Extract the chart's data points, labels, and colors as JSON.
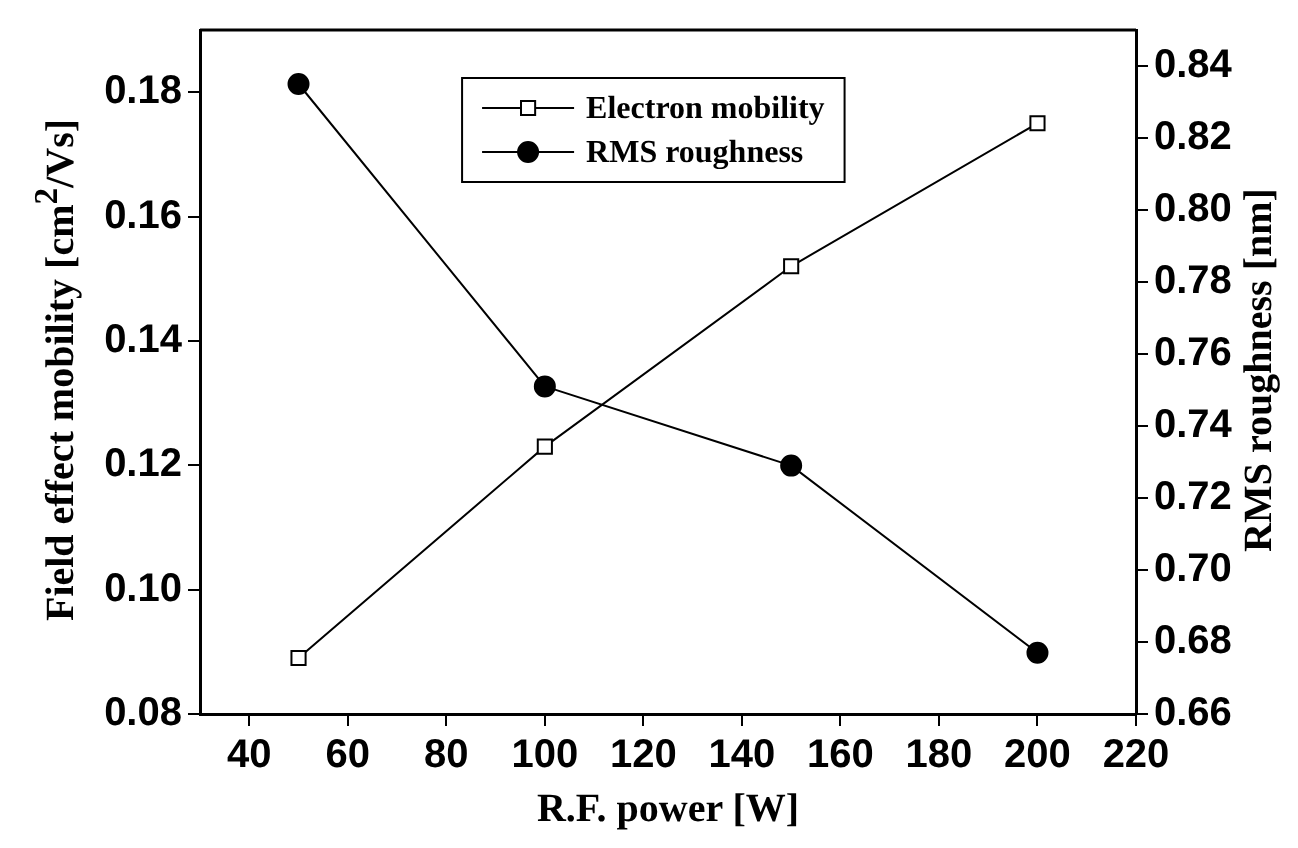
{
  "chart_data": {
    "type": "line",
    "xlabel": "R.F. power [W]",
    "ylabel": "Field effect mobility [cm$^{2}$/Vs]",
    "y2label": "RMS roughness [nm]",
    "x": [
      50,
      100,
      150,
      200
    ],
    "series": [
      {
        "name": "Electron mobility",
        "color": "#000000",
        "marker": "square",
        "values": [
          0.089,
          0.123,
          0.152,
          0.175
        ]
      },
      {
        "name": "RMS roughness",
        "color": "#000000",
        "marker": "circle",
        "axis": "y2",
        "values": [
          0.835,
          0.751,
          0.729,
          0.677
        ]
      }
    ],
    "xlim": [
      30,
      220
    ],
    "xticks": [
      40,
      60,
      80,
      100,
      120,
      140,
      160,
      180,
      200,
      220
    ],
    "ylim": [
      0.08,
      0.19
    ],
    "yticks": [
      0.08,
      {
        "value": 0.1,
        "label": "0.10"
      },
      0.12,
      0.14,
      0.16,
      0.18
    ],
    "y2lim": [
      0.66,
      0.85
    ],
    "y2ticks": [
      0.66,
      0.68,
      {
        "value": 0.7,
        "label": "0.70"
      },
      0.72,
      0.74,
      0.76,
      0.78,
      {
        "value": 0.8,
        "label": "0.80"
      },
      0.82,
      0.84
    ],
    "grid": false,
    "legend": "top",
    "line_style": "solid"
  }
}
